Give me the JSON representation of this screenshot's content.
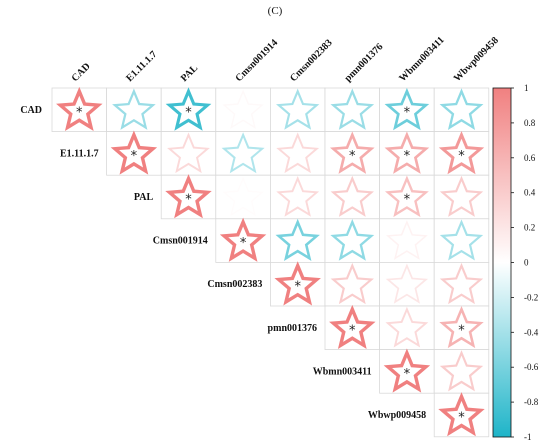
{
  "chart_data": {
    "type": "heatmap",
    "subtype": "correlation-upper-triangle",
    "panel_label": "(C)",
    "glyph": "star",
    "variables": [
      "CAD",
      "E1.11.1.7",
      "PAL",
      "Cmsn001914",
      "Cmsn002383",
      "pmn001376",
      "Wbmn003411",
      "Wbwp009458"
    ],
    "matrix": [
      [
        1.0,
        -0.45,
        -0.85,
        0.05,
        -0.4,
        -0.45,
        -0.65,
        -0.5
      ],
      [
        null,
        1.0,
        0.3,
        -0.35,
        0.3,
        0.65,
        0.65,
        0.8
      ],
      [
        null,
        null,
        1.0,
        0.02,
        0.3,
        0.4,
        0.5,
        0.4
      ],
      [
        null,
        null,
        null,
        1.0,
        -0.6,
        -0.5,
        0.1,
        -0.4
      ],
      [
        null,
        null,
        null,
        null,
        1.0,
        0.4,
        0.2,
        0.4
      ],
      [
        null,
        null,
        null,
        null,
        null,
        1.0,
        0.3,
        0.6
      ],
      [
        null,
        null,
        null,
        null,
        null,
        null,
        1.0,
        0.4
      ],
      [
        null,
        null,
        null,
        null,
        null,
        null,
        null,
        1.0
      ]
    ],
    "significant": [
      [
        true,
        false,
        true,
        false,
        false,
        false,
        true,
        false
      ],
      [
        null,
        true,
        false,
        false,
        false,
        true,
        true,
        true
      ],
      [
        null,
        null,
        true,
        false,
        false,
        false,
        true,
        false
      ],
      [
        null,
        null,
        null,
        true,
        false,
        false,
        false,
        false
      ],
      [
        null,
        null,
        null,
        null,
        true,
        false,
        false,
        false
      ],
      [
        null,
        null,
        null,
        null,
        null,
        true,
        false,
        true
      ],
      [
        null,
        null,
        null,
        null,
        null,
        null,
        true,
        false
      ],
      [
        null,
        null,
        null,
        null,
        null,
        null,
        null,
        true
      ]
    ],
    "significance_marker": "*",
    "colorbar": {
      "range": [
        -1,
        1
      ],
      "ticks": [
        "1",
        "0.8",
        "0.6",
        "0.4",
        "0.2",
        "0",
        "-0.2",
        "-0.4",
        "-0.6",
        "-0.8",
        "-1"
      ],
      "positive_color": "#f08080",
      "neutral_color": "#ffffff",
      "negative_color": "#1eb4c8"
    }
  }
}
